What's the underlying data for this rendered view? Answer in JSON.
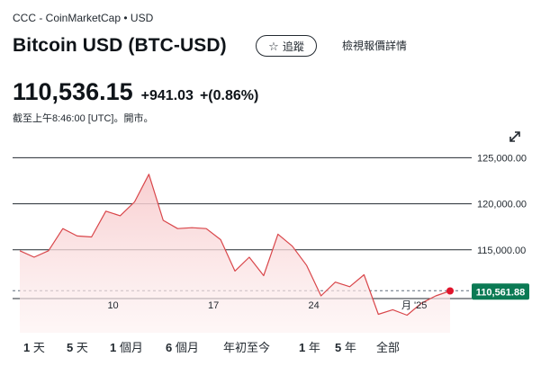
{
  "header": {
    "source": "CCC - CoinMarketCap • USD",
    "title": "Bitcoin USD (BTC-USD)",
    "follow_label": "追蹤",
    "details_label": "檢視報價詳情"
  },
  "quote": {
    "price": "110,536.15",
    "change": "+941.03",
    "change_percent": "+(0.86%)",
    "timestamp": "截至上午8:46:00 [UTC]。開市。"
  },
  "colors": {
    "line": "#d9464a",
    "fill": "#f9dcdd",
    "badge": "#0b7a54",
    "dot": "#e0142b"
  },
  "chart_data": {
    "type": "area",
    "y_tick_labels": [
      "125,000.00",
      "120,000.00",
      "115,000.00"
    ],
    "y_ticks": [
      125000,
      120000,
      115000
    ],
    "ylim": [
      106000,
      126500
    ],
    "x_tick_labels": [
      "10",
      "17",
      "24",
      "月 '25"
    ],
    "x_tick_positions": [
      6.5,
      13.5,
      20.5,
      27.5
    ],
    "xlim": [
      0,
      30.5
    ],
    "baseline": 110000,
    "current_value": 110561.88,
    "current_label": "110,561.88",
    "series": [
      {
        "x": [
          0,
          1,
          2,
          3,
          4,
          5,
          6,
          7,
          8,
          9,
          10,
          11,
          12,
          13,
          14,
          15,
          16,
          17,
          18,
          19,
          20,
          21,
          22,
          23,
          24,
          25,
          26,
          27,
          28,
          29,
          30
        ],
        "values": [
          114900,
          114200,
          114900,
          117300,
          116500,
          116400,
          119200,
          118700,
          120200,
          123200,
          118200,
          117300,
          117400,
          117300,
          116100,
          112700,
          114200,
          112200,
          116700,
          115400,
          113300,
          110000,
          111500,
          111000,
          112300,
          108000,
          108500,
          107900,
          109200,
          110000,
          110540
        ]
      }
    ]
  },
  "range_tabs": [
    {
      "num": "1",
      "unit": "天"
    },
    {
      "num": "5",
      "unit": "天"
    },
    {
      "num": "1",
      "unit": "個月"
    },
    {
      "num": "6",
      "unit": "個月"
    },
    {
      "num": "",
      "unit": "年初至今"
    },
    {
      "num": "1",
      "unit": "年"
    },
    {
      "num": "5",
      "unit": "年"
    },
    {
      "num": "",
      "unit": "全部"
    }
  ]
}
